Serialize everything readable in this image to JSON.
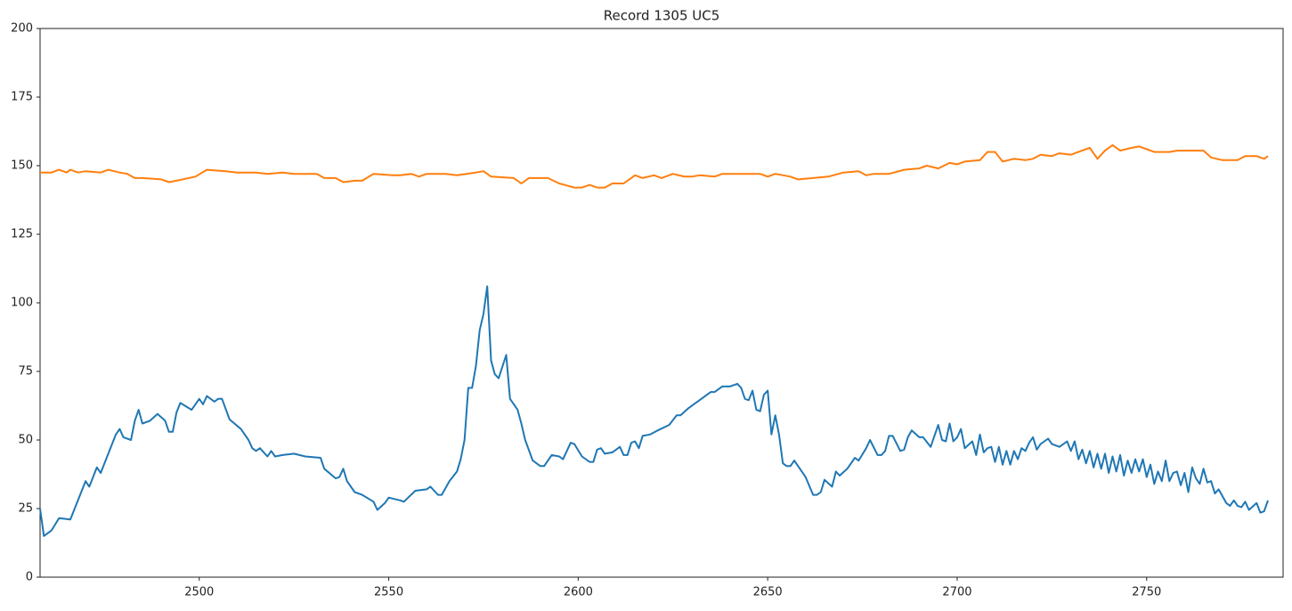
{
  "chart_data": {
    "type": "line",
    "title": "Record 1305 UC5",
    "xlim": [
      2458,
      2786
    ],
    "xticks": [
      2500,
      2550,
      2600,
      2650,
      2700,
      2750
    ],
    "ylim": [
      0,
      200
    ],
    "yticks": [
      0,
      25,
      50,
      75,
      100,
      125,
      150,
      175,
      200
    ],
    "series": [
      {
        "color": "#1f77b4",
        "x": [
          2458,
          2459,
          2461,
          2463,
          2466,
          2470,
          2471,
          2473,
          2474,
          2478,
          2479,
          2480,
          2482,
          2483,
          2484,
          2485,
          2487,
          2489,
          2491,
          2492,
          2493,
          2494,
          2495,
          2498,
          2500,
          2501,
          2502,
          2504,
          2505,
          2506,
          2508,
          2511,
          2513,
          2514,
          2515,
          2516,
          2518,
          2519,
          2520,
          2522,
          2525,
          2528,
          2532,
          2533,
          2536,
          2537,
          2538,
          2539,
          2541,
          2543,
          2546,
          2547,
          2549,
          2550,
          2553,
          2554,
          2557,
          2560,
          2561,
          2562,
          2563,
          2564,
          2566,
          2568,
          2569,
          2570,
          2571,
          2572,
          2573,
          2574,
          2575,
          2576,
          2577,
          2578,
          2579,
          2581,
          2582,
          2584,
          2585,
          2586,
          2588,
          2590,
          2591,
          2593,
          2595,
          2596,
          2598,
          2599,
          2601,
          2603,
          2604,
          2605,
          2606,
          2607,
          2609,
          2611,
          2612,
          2613,
          2614,
          2615,
          2616,
          2617,
          2619,
          2621,
          2624,
          2626,
          2627,
          2629,
          2632,
          2635,
          2636,
          2638,
          2640,
          2642,
          2643,
          2644,
          2645,
          2646,
          2647,
          2648,
          2649,
          2650,
          2651,
          2652,
          2653,
          2654,
          2655,
          2656,
          2657,
          2660,
          2662,
          2663,
          2664,
          2665,
          2667,
          2668,
          2669,
          2671,
          2673,
          2674,
          2676,
          2677,
          2679,
          2680,
          2681,
          2682,
          2683,
          2685,
          2686,
          2687,
          2688,
          2690,
          2691,
          2693,
          2695,
          2696,
          2697,
          2698,
          2699,
          2700,
          2701,
          2702,
          2704,
          2705,
          2706,
          2707,
          2708,
          2709,
          2710,
          2711,
          2712,
          2713,
          2714,
          2715,
          2716,
          2717,
          2718,
          2719,
          2720,
          2721,
          2722,
          2724,
          2725,
          2727,
          2729,
          2730,
          2731,
          2732,
          2733,
          2734,
          2735,
          2736,
          2737,
          2738,
          2739,
          2740,
          2741,
          2742,
          2743,
          2744,
          2745,
          2746,
          2747,
          2748,
          2749,
          2750,
          2751,
          2752,
          2753,
          2754,
          2755,
          2756,
          2757,
          2758,
          2759,
          2760,
          2761,
          2762,
          2763,
          2764,
          2765,
          2766,
          2767,
          2768,
          2769,
          2771,
          2772,
          2773,
          2774,
          2775,
          2776,
          2777,
          2779,
          2780,
          2781,
          2782
        ],
        "values": [
          25,
          15,
          17,
          21.5,
          21,
          35,
          33,
          40,
          38,
          52,
          54,
          51,
          50,
          57,
          61,
          56,
          57,
          59.5,
          57,
          53,
          53,
          60,
          63.5,
          61,
          65,
          63,
          66,
          64,
          65,
          65,
          57.5,
          54,
          50,
          47,
          46,
          47,
          44,
          46,
          44,
          44.5,
          45,
          44,
          43.5,
          39.5,
          36,
          36.5,
          39.5,
          35,
          31,
          30,
          27.5,
          24.5,
          27,
          29,
          28,
          27.5,
          31.5,
          32,
          33,
          31.5,
          30,
          30,
          35,
          38.5,
          43,
          50,
          69,
          69,
          77,
          90,
          96,
          106,
          79,
          74,
          72.5,
          81,
          65,
          61,
          56,
          50,
          42.5,
          40.5,
          40.5,
          44.5,
          44,
          43,
          49,
          48.5,
          44,
          42,
          42,
          46.5,
          47,
          45,
          45.5,
          47.5,
          44.5,
          44.5,
          49,
          49.5,
          47,
          51.5,
          52,
          53.5,
          55.5,
          59,
          59,
          61.5,
          64.5,
          67.5,
          67.5,
          69.5,
          69.5,
          70.5,
          69,
          65,
          64.5,
          68,
          61,
          60.5,
          66.5,
          68,
          52,
          59,
          52,
          41.5,
          40.5,
          40.5,
          42.5,
          36.5,
          30,
          30,
          31,
          35.5,
          33,
          38.5,
          37,
          39.5,
          43.5,
          42.5,
          47,
          50,
          44.5,
          44.5,
          46,
          51.5,
          51.5,
          46,
          46.5,
          51,
          53.5,
          51,
          51,
          47.5,
          55.5,
          50,
          49.5,
          56,
          49.5,
          51,
          54,
          47,
          49.5,
          44.5,
          52,
          45.5,
          47,
          47.5,
          42,
          47.5,
          41,
          46,
          41,
          46,
          43,
          47,
          46,
          49,
          51,
          46.5,
          48.5,
          50.5,
          48.5,
          47.5,
          49.5,
          46,
          49.5,
          43,
          46.5,
          41.5,
          46,
          40,
          45,
          39.5,
          45,
          38,
          44,
          38.5,
          44.5,
          37,
          42.5,
          38,
          43,
          38.5,
          43,
          36.5,
          41,
          34,
          38.5,
          35,
          42.5,
          35,
          38,
          38.5,
          33.5,
          38,
          31,
          40,
          36,
          34,
          39.5,
          34.5,
          35,
          30.5,
          32,
          27,
          26,
          28,
          26,
          25.5,
          27.5,
          24.5,
          27,
          23.5,
          24,
          28
        ]
      },
      {
        "color": "#ff7f0e",
        "x": [
          2458,
          2461,
          2463,
          2465,
          2466,
          2468,
          2470,
          2474,
          2476,
          2479,
          2481,
          2483,
          2485,
          2490,
          2492,
          2494,
          2499,
          2502,
          2507,
          2510,
          2515,
          2518,
          2522,
          2525,
          2531,
          2533,
          2536,
          2538,
          2541,
          2543,
          2546,
          2551,
          2553,
          2556,
          2558,
          2560,
          2565,
          2568,
          2573,
          2575,
          2577,
          2583,
          2585,
          2587,
          2592,
          2595,
          2599,
          2601,
          2603,
          2605,
          2607,
          2609,
          2612,
          2615,
          2617,
          2620,
          2622,
          2625,
          2628,
          2630,
          2632,
          2636,
          2638,
          2643,
          2648,
          2650,
          2652,
          2656,
          2658,
          2662,
          2666,
          2670,
          2674,
          2676,
          2678,
          2682,
          2686,
          2690,
          2692,
          2695,
          2698,
          2700,
          2702,
          2706,
          2708,
          2710,
          2712,
          2715,
          2718,
          2720,
          2722,
          2725,
          2727,
          2730,
          2732,
          2735,
          2737,
          2739,
          2741,
          2743,
          2746,
          2748,
          2750,
          2752,
          2756,
          2758,
          2765,
          2767,
          2770,
          2774,
          2776,
          2779,
          2781,
          2782
        ],
        "values": [
          147.5,
          147.5,
          148.5,
          147.5,
          148.5,
          147.5,
          148,
          147.5,
          148.5,
          147.5,
          147,
          145.5,
          145.5,
          145,
          144,
          144.5,
          146,
          148.5,
          148,
          147.5,
          147.5,
          147,
          147.5,
          147,
          147,
          145.5,
          145.5,
          144,
          144.5,
          144.5,
          147,
          146.5,
          146.5,
          147,
          146,
          147,
          147,
          146.5,
          147.5,
          148,
          146,
          145.5,
          143.5,
          145.5,
          145.5,
          143.5,
          142,
          142,
          143,
          142,
          142,
          143.5,
          143.5,
          146.5,
          145.5,
          146.5,
          145.5,
          147,
          146,
          146,
          146.5,
          146,
          147,
          147,
          147,
          146,
          147,
          146,
          145,
          145.5,
          146,
          147.5,
          148,
          146.5,
          147,
          147,
          148.5,
          149,
          150,
          149,
          151,
          150.5,
          151.5,
          152,
          155,
          155,
          151.5,
          152.5,
          152,
          152.5,
          154,
          153.5,
          154.5,
          154,
          155,
          156.5,
          152.5,
          155.5,
          157.5,
          155.5,
          156.5,
          157,
          156,
          155,
          155,
          155.5,
          155.5,
          153,
          152,
          152,
          153.5,
          153.5,
          152.5,
          153.5
        ]
      }
    ]
  }
}
